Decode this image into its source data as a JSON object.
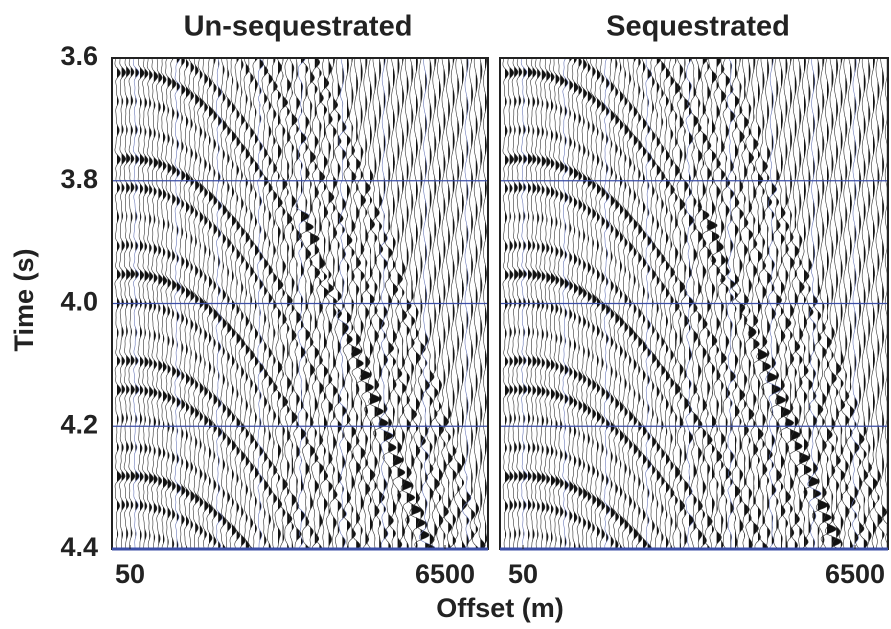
{
  "chart_data": [
    {
      "type": "seismic",
      "title": "Un-sequestrated",
      "xlim": [
        50,
        6500
      ],
      "xticks": [
        50,
        6500
      ],
      "ylim": [
        3.6,
        4.4
      ],
      "inverted_y": true,
      "yticks": [
        3.6,
        3.8,
        {
          "value": 4,
          "label": "4.0"
        },
        4.2,
        4.4
      ],
      "grid": true,
      "grid_color": "#3b4ea6"
    },
    {
      "type": "seismic",
      "title": "Sequestrated",
      "xlim": [
        50,
        6500
      ],
      "xticks": [
        50,
        6500
      ],
      "ylim": [
        3.6,
        4.4
      ],
      "inverted_y": true,
      "yticks": [
        3.6,
        3.8,
        4,
        4.2,
        4.4
      ],
      "grid": true,
      "grid_color": "#3b4ea6"
    }
  ],
  "ylabel": "Time (s)",
  "xlabel": "Offset (m)"
}
